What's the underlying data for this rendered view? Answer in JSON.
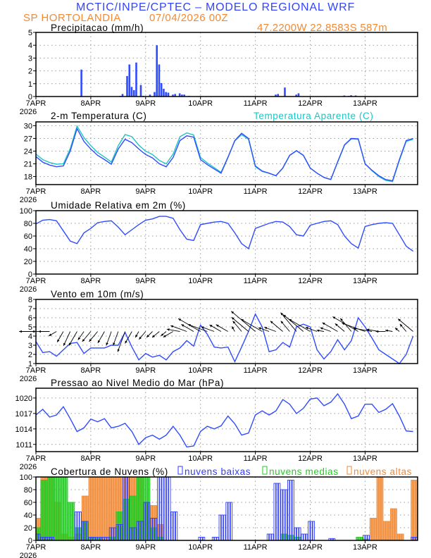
{
  "header": {
    "title": "MCTIC/INPE/CPTEC – MODELO REGIONAL WRF",
    "station": "SP HORTOLANDIA",
    "run": "07/04/2026 00Z",
    "location": "47.2200W 22.8583S 587m"
  },
  "colors": {
    "title": "#3344ff",
    "orange": "#f08a35",
    "line": "#2f4cff",
    "apparent": "#1fc4c4",
    "low_clouds": "#2f3cff",
    "mid_clouds": "#22cc22",
    "high_clouds": "#f39a50",
    "grid": "#9a9a9a"
  },
  "x_axis": {
    "ticks": [
      "7APR",
      "8APR",
      "9APR",
      "10APR",
      "11APR",
      "12APR",
      "13APR"
    ],
    "year": "2026",
    "start": "7APR2026 00Z",
    "step_hours": 3
  },
  "chart_data": [
    {
      "id": "precip",
      "type": "bar",
      "title": "Precipitacao (mm/h)",
      "ylim": [
        0,
        5
      ],
      "yticks": [
        "0",
        "1",
        "2",
        "3",
        "4",
        "5"
      ],
      "grid": true,
      "values_mm_h": {
        "7APR 20Z": 2.1,
        "8APR 09Z": 0.02,
        "8APR 13Z": 0.05,
        "8APR 14Z": 0.2,
        "8APR 16Z": 1.6,
        "8APR 17Z": 2.5,
        "8APR 18Z": 0.75,
        "8APR 19Z": 0.5,
        "8APR 20Z": 2.65,
        "8APR 22Z": 0.9,
        "8APR 23Z": 0.05,
        "9APR 02Z": 0.15,
        "9APR 04Z": 0.35,
        "9APR 05Z": 4.0,
        "9APR 06Z": 2.5,
        "9APR 07Z": 1.05,
        "9APR 08Z": 0.6,
        "9APR 09Z": 0.35,
        "9APR 10Z": 0.3,
        "9APR 12Z": 0.15,
        "9APR 13Z": 0.2,
        "9APR 15Z": 0.25,
        "9APR 16Z": 0.15,
        "9APR 17Z": 0.15,
        "9APR 19Z": 0.05,
        "10APR 13Z": 0.02,
        "11APR 09Z": 0.15,
        "11APR 10Z": 0.2,
        "11APR 13Z": 0.7,
        "11APR 18Z": 0.15,
        "11APR 19Z": 0.25,
        "11APR 20Z": 0.03,
        "12APR 15Z": 0.08,
        "12APR 17Z": 0.05,
        "12APR 18Z": 0.1,
        "12APR 20Z": 0.08,
        "13APR 22Z": 0.03
      }
    },
    {
      "id": "temp",
      "type": "line",
      "title": "2-m Temperatura (C)",
      "ylim": [
        16.1,
        30.9
      ],
      "yticks": [
        "18",
        "21",
        "24",
        "27",
        "30"
      ],
      "grid": true,
      "series": [
        {
          "name": "2-m Temperatura (C)",
          "values": [
            22.7,
            21.4,
            20.7,
            20.3,
            20.5,
            24.0,
            29.3,
            26.3,
            24.5,
            23.0,
            22.0,
            20.9,
            24.5,
            26.8,
            26.0,
            24.5,
            23.2,
            22.4,
            21.0,
            20.3,
            22.5,
            26.5,
            27.6,
            27.3,
            22.0,
            20.8,
            19.8,
            18.8,
            22.5,
            26.5,
            28.2,
            27.0,
            20.5,
            19.3,
            18.8,
            18.2,
            20.0,
            23.0,
            24.1,
            23.0,
            20.0,
            18.8,
            17.8,
            17.3,
            21.5,
            25.5,
            27.0,
            26.9,
            21.0,
            19.5,
            18.2,
            17.3,
            17.0,
            22.0,
            26.5,
            27.0
          ]
        },
        {
          "name": "Temperatura Aparente (C)",
          "values": [
            23.3,
            22.0,
            21.3,
            20.9,
            21.0,
            24.6,
            29.9,
            27.2,
            25.3,
            23.7,
            22.6,
            21.4,
            25.3,
            27.9,
            27.4,
            25.4,
            24.0,
            23.2,
            21.8,
            21.0,
            23.3,
            27.4,
            28.3,
            27.8,
            22.5,
            21.2,
            20.1,
            19.0,
            22.6,
            26.4,
            27.9,
            26.8,
            20.3,
            19.2,
            18.8,
            18.2,
            20.0,
            23.0,
            24.1,
            23.0,
            20.0,
            18.8,
            17.8,
            17.3,
            21.4,
            25.4,
            26.9,
            26.8,
            21.0,
            19.4,
            18.0,
            17.1,
            16.8,
            21.8,
            26.3,
            26.8
          ]
        }
      ]
    },
    {
      "id": "rh",
      "type": "line",
      "title": "Umidade Relativa em 2m (%)",
      "ylim": [
        0,
        100
      ],
      "yticks": [
        "0",
        "20",
        "40",
        "60",
        "80",
        "100"
      ],
      "grid": true,
      "series": [
        {
          "values": [
            79,
            85,
            86,
            84,
            68,
            52,
            48,
            65,
            72,
            81,
            83,
            84,
            74,
            62,
            70,
            78,
            85,
            87,
            91,
            91,
            88,
            70,
            55,
            53,
            78,
            80,
            82,
            83,
            80,
            65,
            48,
            40,
            72,
            76,
            80,
            83,
            82,
            75,
            62,
            60,
            77,
            80,
            83,
            84,
            78,
            60,
            48,
            41,
            75,
            78,
            80,
            81,
            80,
            62,
            44,
            36
          ]
        }
      ]
    },
    {
      "id": "wind",
      "type": "line",
      "title": "Vento em 10m (m/s)",
      "ylim": [
        1,
        8
      ],
      "yticks": [
        "1",
        "2",
        "3",
        "4",
        "5",
        "6",
        "7",
        "8"
      ],
      "grid": true,
      "series": [
        {
          "values": [
            3.4,
            2.2,
            2.3,
            1.8,
            2.5,
            3.2,
            3.3,
            2.1,
            2.7,
            2.7,
            2.7,
            3.0,
            3.0,
            4.4,
            2.8,
            1.4,
            2.1,
            1.7,
            1.9,
            1.4,
            2.3,
            2.7,
            3.5,
            2.9,
            5.2,
            4.2,
            2.8,
            2.7,
            2.8,
            1.2,
            2.8,
            4.5,
            6.4,
            5.0,
            2.3,
            2.5,
            3.3,
            2.8,
            5.0,
            5.3,
            5.0,
            2.5,
            1.5,
            2.3,
            3.6,
            2.5,
            3.5,
            6.0,
            5.0,
            3.8,
            2.5,
            2.0,
            1.5,
            1.0,
            2.0,
            4.0
          ]
        }
      ],
      "direction_deg": [
        90,
        90,
        90,
        60,
        30,
        25,
        30,
        35,
        40,
        40,
        30,
        20,
        20,
        20,
        30,
        30,
        40,
        45,
        50,
        50,
        60,
        100,
        110,
        120,
        120,
        110,
        110,
        120,
        120,
        150,
        140,
        130,
        130,
        120,
        110,
        110,
        130,
        140,
        140,
        130,
        120,
        110,
        100,
        110,
        120,
        130,
        140,
        120,
        110,
        100,
        100,
        90,
        100,
        130,
        140,
        130
      ]
    },
    {
      "id": "pressure",
      "type": "line",
      "title": "Pressao ao Nivel Medio do Mar (hPa)",
      "ylim": [
        1009.6,
        1021.9
      ],
      "yticks": [
        "1011",
        "1014",
        "1017",
        "1020"
      ],
      "grid": true,
      "series": [
        {
          "values": [
            1016.7,
            1017.8,
            1016.3,
            1016.7,
            1018.3,
            1016.0,
            1013.5,
            1014.2,
            1015.9,
            1015.4,
            1016.0,
            1014.2,
            1014.5,
            1015.1,
            1013.5,
            1011.0,
            1012.3,
            1012.8,
            1012.0,
            1012.8,
            1014.5,
            1012.8,
            1010.5,
            1010.7,
            1013.5,
            1014.5,
            1014.0,
            1014.6,
            1016.5,
            1015.0,
            1012.8,
            1013.2,
            1016.7,
            1017.5,
            1016.7,
            1017.5,
            1019.7,
            1018.8,
            1017.0,
            1018.0,
            1019.8,
            1020.0,
            1018.5,
            1019.2,
            1020.8,
            1018.8,
            1016.0,
            1016.5,
            1018.8,
            1018.8,
            1017.2,
            1017.8,
            1018.9,
            1016.5,
            1013.6,
            1013.5
          ]
        }
      ]
    },
    {
      "id": "clouds",
      "type": "bar",
      "title": "Cobertura de Nuvens (%)",
      "ylim": [
        0,
        100
      ],
      "yticks": [
        "0",
        "20",
        "40",
        "60",
        "80",
        "100"
      ],
      "grid": true,
      "series": [
        {
          "name": "nuvens altas",
          "values": [
            35,
            100,
            100,
            60,
            10,
            5,
            10,
            70,
            100,
            100,
            100,
            100,
            100,
            100,
            100,
            100,
            60,
            55,
            25,
            0,
            0,
            0,
            0,
            0,
            0,
            0,
            0,
            0,
            0,
            0,
            0,
            0,
            0,
            0,
            0,
            0,
            0,
            0,
            0,
            0,
            0,
            0,
            0,
            0,
            0,
            0,
            0,
            0,
            0,
            35,
            100,
            30,
            50,
            10,
            0,
            95
          ]
        },
        {
          "name": "nuvens medias",
          "values": [
            20,
            95,
            100,
            100,
            100,
            60,
            20,
            30,
            5,
            3,
            0,
            5,
            45,
            65,
            70,
            100,
            100,
            20,
            5,
            0,
            0,
            0,
            0,
            0,
            0,
            0,
            0,
            0,
            0,
            0,
            0,
            0,
            0,
            0,
            0,
            0,
            10,
            8,
            5,
            0,
            0,
            0,
            0,
            0,
            0,
            0,
            0,
            5,
            2,
            0,
            0,
            0,
            0,
            0,
            0,
            0
          ]
        },
        {
          "name": "nuvens baixas",
          "values": [
            10,
            5,
            5,
            0,
            0,
            0,
            45,
            30,
            5,
            5,
            5,
            20,
            25,
            100,
            20,
            30,
            60,
            35,
            100,
            100,
            45,
            0,
            0,
            0,
            5,
            0,
            5,
            40,
            60,
            0,
            0,
            0,
            0,
            0,
            10,
            90,
            80,
            95,
            20,
            10,
            30,
            0,
            0,
            3,
            0,
            0,
            0,
            0,
            8,
            0,
            0,
            0,
            0,
            0,
            0,
            5
          ]
        }
      ]
    }
  ]
}
